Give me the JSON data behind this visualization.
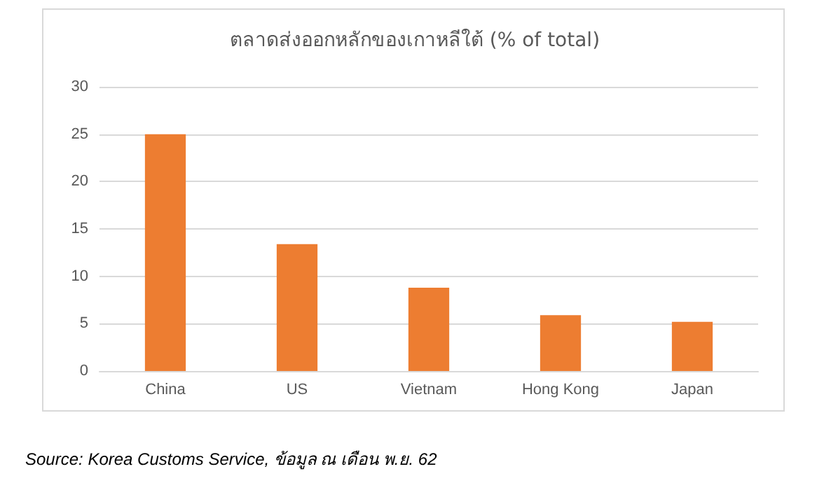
{
  "chart_data": {
    "type": "bar",
    "title": "ตลาดส่งออกหลักของเกาหลีใต้ (% of total)",
    "categories": [
      "China",
      "US",
      "Vietnam",
      "Hong Kong",
      "Japan"
    ],
    "values": [
      25,
      13.4,
      8.8,
      5.9,
      5.2
    ],
    "color": "#ed7d31",
    "ylim": [
      0,
      30
    ],
    "yticks": [
      0,
      5,
      10,
      15,
      20,
      25,
      30
    ],
    "grid": "y",
    "annotations": [
      "Source: Korea Customs Service, ข้อมูล ณ เดือน พ.ย. 62"
    ]
  }
}
